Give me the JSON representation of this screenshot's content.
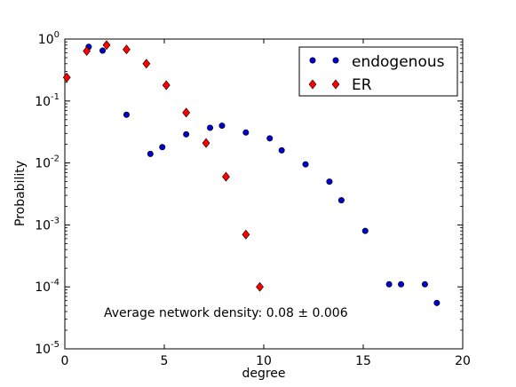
{
  "chart_data": {
    "type": "scatter",
    "xlabel": "degree",
    "ylabel": "Probability",
    "xlim": [
      0,
      20
    ],
    "ylim": [
      1e-05,
      1
    ],
    "yscale": "log",
    "xticks": [
      0,
      5,
      10,
      15,
      20
    ],
    "yticks": [
      {
        "base": "10",
        "exp": "-5",
        "value": 1e-05
      },
      {
        "base": "10",
        "exp": "-4",
        "value": 0.0001
      },
      {
        "base": "10",
        "exp": "-3",
        "value": 0.001
      },
      {
        "base": "10",
        "exp": "-2",
        "value": 0.01
      },
      {
        "base": "10",
        "exp": "-1",
        "value": 0.1
      },
      {
        "base": "10",
        "exp": "0",
        "value": 1
      }
    ],
    "legend_position": "top-right",
    "annotation": "Average network density: 0.08 ± 0.006",
    "series": [
      {
        "name": "endogenous",
        "marker": "circle",
        "color": "#0000cc",
        "points": [
          {
            "x": 1.2,
            "y": 0.75
          },
          {
            "x": 1.9,
            "y": 0.65
          },
          {
            "x": 3.1,
            "y": 0.06
          },
          {
            "x": 4.3,
            "y": 0.014
          },
          {
            "x": 4.9,
            "y": 0.018
          },
          {
            "x": 6.1,
            "y": 0.029
          },
          {
            "x": 7.3,
            "y": 0.037
          },
          {
            "x": 7.9,
            "y": 0.04
          },
          {
            "x": 9.1,
            "y": 0.031
          },
          {
            "x": 10.3,
            "y": 0.025
          },
          {
            "x": 10.9,
            "y": 0.016
          },
          {
            "x": 12.1,
            "y": 0.0095
          },
          {
            "x": 13.3,
            "y": 0.005
          },
          {
            "x": 13.9,
            "y": 0.0025
          },
          {
            "x": 15.1,
            "y": 0.0008
          },
          {
            "x": 16.3,
            "y": 0.00011
          },
          {
            "x": 16.9,
            "y": 0.00011
          },
          {
            "x": 18.1,
            "y": 0.00011
          },
          {
            "x": 18.7,
            "y": 5.5e-05
          }
        ]
      },
      {
        "name": "ER",
        "marker": "diamond",
        "color": "#ff0000",
        "points": [
          {
            "x": 0.1,
            "y": 0.24
          },
          {
            "x": 1.1,
            "y": 0.64
          },
          {
            "x": 2.1,
            "y": 0.8
          },
          {
            "x": 3.1,
            "y": 0.68
          },
          {
            "x": 4.1,
            "y": 0.4
          },
          {
            "x": 5.1,
            "y": 0.18
          },
          {
            "x": 6.1,
            "y": 0.065
          },
          {
            "x": 7.1,
            "y": 0.021
          },
          {
            "x": 8.1,
            "y": 0.006
          },
          {
            "x": 9.1,
            "y": 0.0007
          },
          {
            "x": 9.8,
            "y": 0.0001
          }
        ]
      }
    ]
  }
}
